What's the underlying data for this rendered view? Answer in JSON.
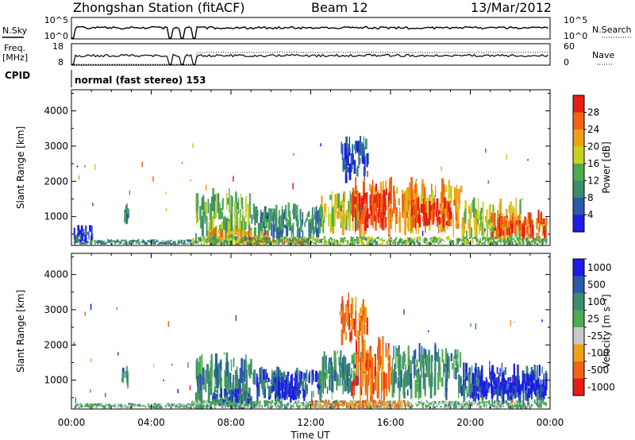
{
  "header": {
    "station": "Zhongshan Station (fitACF)",
    "beam": "Beam 12",
    "date": "13/Mar/2012"
  },
  "status_panels": {
    "nsky_label": "N.Sky",
    "nsky_ticks": [
      "10^5",
      "10^0"
    ],
    "nsearch_label": "N.Search",
    "nsearch_ticks": [
      "10^5",
      "10^0"
    ],
    "freq_label_1": "Freq.",
    "freq_label_2": "[MHz]",
    "freq_ticks": [
      "18",
      "8"
    ],
    "nave_label": "Nave",
    "nave_ticks": [
      "60",
      "0"
    ],
    "cpid_label": "CPID",
    "cpid_text": "normal (fast stereo) 153"
  },
  "colors": {
    "power_scale": [
      "#1c1ce6",
      "#2a5aa8",
      "#3c8c6e",
      "#4caa50",
      "#c8d21e",
      "#f0a018",
      "#f06414",
      "#e61e14"
    ],
    "velocity_scale": [
      "#e61e14",
      "#f06414",
      "#f0a018",
      "#c8c8c8",
      "#4caa50",
      "#3c8c6e",
      "#2a5aa8",
      "#1c1ce6"
    ]
  },
  "chart_data": [
    {
      "type": "heatmap",
      "name": "power",
      "ylabel": "Slant Range [km]",
      "xlabel": "Time UT",
      "x_ticks": [
        "00:00",
        "04:00",
        "08:00",
        "12:00",
        "16:00",
        "20:00",
        "00:00"
      ],
      "y_ticks": [
        "1000",
        "2000",
        "3000",
        "4000"
      ],
      "xlim": [
        0,
        24
      ],
      "ylim": [
        180,
        4600
      ],
      "colorbar_label": "Power [dB]",
      "colorbar_ticks": [
        "4",
        "8",
        "12",
        "16",
        "20",
        "24",
        "28"
      ],
      "colorbar_range": [
        0,
        32
      ],
      "blobs": [
        {
          "t0": 0.1,
          "t1": 6.0,
          "r0": 220,
          "r1": 330,
          "level": 2
        },
        {
          "t0": 0.1,
          "t1": 1.0,
          "r0": 350,
          "r1": 700,
          "level": 1
        },
        {
          "t0": 2.5,
          "t1": 2.8,
          "r0": 800,
          "r1": 1300,
          "level": 2
        },
        {
          "t0": 6.2,
          "t1": 9.0,
          "r0": 380,
          "r1": 1500,
          "level": 3
        },
        {
          "t0": 6.8,
          "t1": 9.8,
          "r0": 250,
          "r1": 600,
          "level": 5
        },
        {
          "t0": 8.2,
          "t1": 11.8,
          "r0": 230,
          "r1": 380,
          "level": 7
        },
        {
          "t0": 9.0,
          "t1": 12.5,
          "r0": 500,
          "r1": 1200,
          "level": 2
        },
        {
          "t0": 12.5,
          "t1": 14.5,
          "r0": 700,
          "r1": 1600,
          "level": 4
        },
        {
          "t0": 13.5,
          "t1": 14.8,
          "r0": 2200,
          "r1": 3100,
          "level": 1
        },
        {
          "t0": 14.0,
          "t1": 16.0,
          "r0": 600,
          "r1": 1900,
          "level": 6
        },
        {
          "t0": 14.5,
          "t1": 15.8,
          "r0": 800,
          "r1": 1600,
          "level": 7
        },
        {
          "t0": 16.0,
          "t1": 19.5,
          "r0": 700,
          "r1": 1800,
          "level": 5
        },
        {
          "t0": 17.0,
          "t1": 19.0,
          "r0": 800,
          "r1": 1400,
          "level": 7
        },
        {
          "t0": 19.5,
          "t1": 22.5,
          "r0": 400,
          "r1": 1300,
          "level": 4
        },
        {
          "t0": 21.0,
          "t1": 23.8,
          "r0": 400,
          "r1": 1000,
          "level": 6
        },
        {
          "t0": 6.0,
          "t1": 23.8,
          "r0": 220,
          "r1": 400,
          "level": 3
        }
      ]
    },
    {
      "type": "heatmap",
      "name": "velocity",
      "ylabel": "Slant Range [km]",
      "xlabel": "Time UT",
      "x_ticks": [
        "00:00",
        "04:00",
        "08:00",
        "12:00",
        "16:00",
        "20:00",
        "00:00"
      ],
      "y_ticks": [
        "1000",
        "2000",
        "3000",
        "4000"
      ],
      "xlim": [
        0,
        24
      ],
      "ylim": [
        180,
        4600
      ],
      "colorbar_label": "Velocity [m s⁻¹]",
      "colorbar_ticks": [
        "-1000",
        "-500",
        "-100",
        "-25",
        "25",
        "100",
        "500",
        "1000"
      ],
      "blobs": [
        {
          "t0": 0.1,
          "t1": 6.0,
          "r0": 220,
          "r1": 330,
          "level": 4
        },
        {
          "t0": 2.5,
          "t1": 2.8,
          "r0": 800,
          "r1": 1300,
          "level": 5
        },
        {
          "t0": 6.2,
          "t1": 9.0,
          "r0": 380,
          "r1": 1500,
          "level": 5
        },
        {
          "t0": 7.0,
          "t1": 9.0,
          "r0": 300,
          "r1": 700,
          "level": 6
        },
        {
          "t0": 9.0,
          "t1": 12.5,
          "r0": 500,
          "r1": 1200,
          "level": 6
        },
        {
          "t0": 10.0,
          "t1": 11.5,
          "r0": 500,
          "r1": 1100,
          "level": 7
        },
        {
          "t0": 12.5,
          "t1": 14.5,
          "r0": 700,
          "r1": 1600,
          "level": 5
        },
        {
          "t0": 13.5,
          "t1": 14.8,
          "r0": 2200,
          "r1": 3200,
          "level": 1
        },
        {
          "t0": 14.0,
          "t1": 16.0,
          "r0": 600,
          "r1": 1900,
          "level": 1
        },
        {
          "t0": 16.0,
          "t1": 19.5,
          "r0": 700,
          "r1": 1800,
          "level": 5
        },
        {
          "t0": 19.5,
          "t1": 23.8,
          "r0": 500,
          "r1": 1300,
          "level": 6
        },
        {
          "t0": 20.0,
          "t1": 23.8,
          "r0": 600,
          "r1": 1100,
          "level": 7
        },
        {
          "t0": 6.0,
          "t1": 23.8,
          "r0": 220,
          "r1": 400,
          "level": 4
        },
        {
          "t0": 12.0,
          "t1": 17.0,
          "r0": 220,
          "r1": 400,
          "level": 2
        }
      ]
    }
  ]
}
